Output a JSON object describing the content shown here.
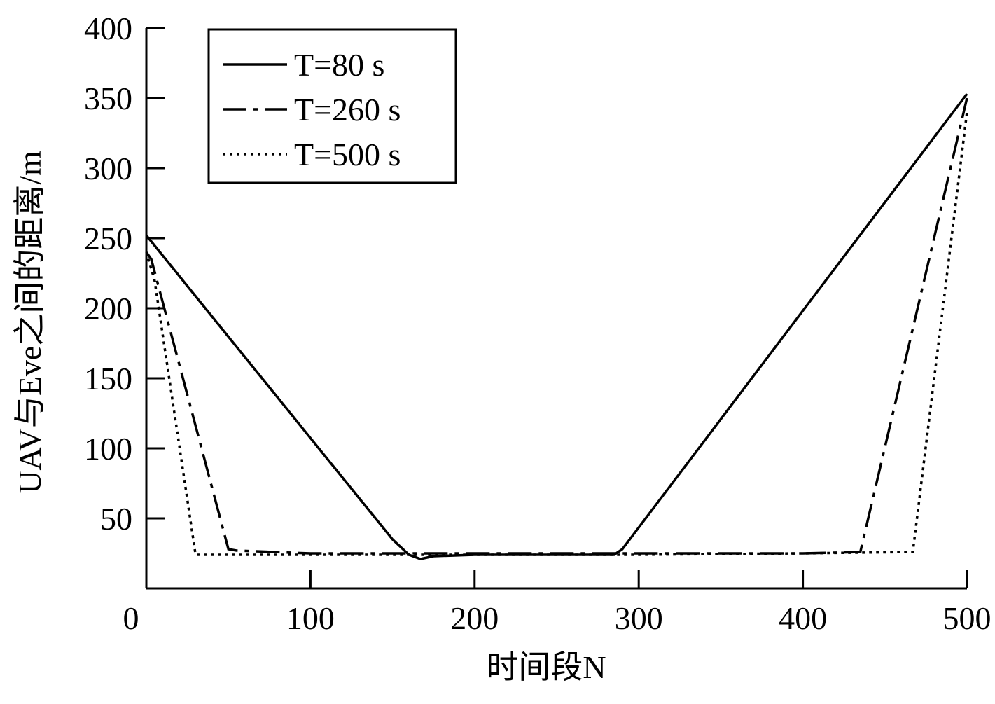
{
  "chart_data": {
    "type": "line",
    "x_label": "时间段N",
    "y_label": "UAV与Eve之间的距离/m",
    "xlim": [
      0,
      500
    ],
    "ylim": [
      0,
      400
    ],
    "xticks": [
      0,
      100,
      200,
      300,
      400,
      500
    ],
    "yticks": [
      50,
      100,
      150,
      200,
      250,
      300,
      350,
      400
    ],
    "legend": "upper-left",
    "series": [
      {
        "name": "T=80 s",
        "color": "#000000",
        "dash": "solid",
        "x": [
          0,
          150,
          160,
          167,
          175,
          200,
          250,
          285,
          290,
          500
        ],
        "values": [
          252,
          35,
          24,
          21,
          23,
          24,
          24,
          24,
          28,
          353
        ]
      },
      {
        "name": "T=260 s",
        "color": "#000000",
        "dash": "dashdot",
        "x": [
          0,
          3,
          50,
          55,
          100,
          200,
          300,
          400,
          435,
          500
        ],
        "values": [
          240,
          235,
          28,
          27,
          25,
          25,
          25,
          25,
          26,
          350
        ]
      },
      {
        "name": "T=500 s",
        "color": "#000000",
        "dash": "dotted",
        "x": [
          0,
          5,
          30,
          100,
          200,
          300,
          400,
          467,
          500
        ],
        "values": [
          240,
          220,
          24,
          24,
          24,
          24,
          25,
          26,
          340
        ]
      }
    ]
  }
}
